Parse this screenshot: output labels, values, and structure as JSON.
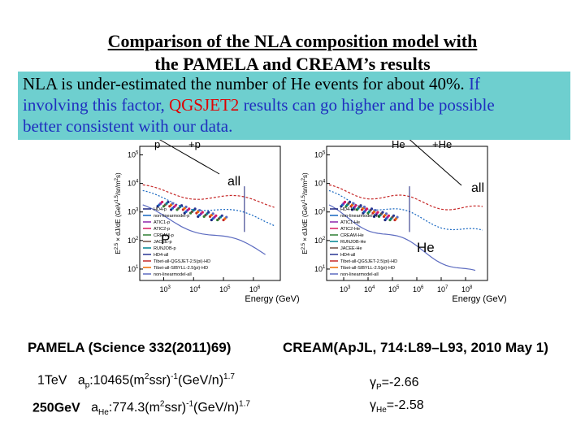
{
  "title": {
    "line1": "Comparison of the  NLA  composition  model  with",
    "line2": "the PAMELA  and CREAM’s  results"
  },
  "note": {
    "line1_black": "NLA  is  under-estimated the number of He events for about 40%.",
    "line1_blue": "If",
    "line2_blue_a": "involving this factor,",
    "line2_red": "QGSJET2",
    "line2_blue_b": "results can go higher and be possible",
    "line3_blue": "better consistent with  our data."
  },
  "plots": [
    {
      "top_labels": [
        "p",
        "+p"
      ],
      "all_label": "all",
      "component_label": "P",
      "component_font": "sans",
      "x_axis_label": "Energy (GeV)",
      "y_axis_label": [
        {
          "t": "E",
          "sup": false
        },
        {
          "t": "2.5",
          "sup": true
        },
        {
          "t": " × dJ/dE (GeV",
          "sup": false
        },
        {
          "t": "1.5",
          "sup": true
        },
        {
          "t": "/sr/m",
          "sup": false
        },
        {
          "t": "2",
          "sup": true
        },
        {
          "t": "s)",
          "sup": false
        }
      ],
      "tick_base": "10",
      "x_tick_exponents": [
        "3",
        "4",
        "5",
        "6"
      ],
      "y_tick_exponents": [
        "1",
        "2",
        "3",
        "4",
        "5"
      ],
      "legend": [
        {
          "name": "HD4-p",
          "color": "#1a237e"
        },
        {
          "name": "non-linearmodel-p",
          "color": "#1565c0"
        },
        {
          "name": "ATIC1-p",
          "color": "#8e24aa"
        },
        {
          "name": "ATIC2-p",
          "color": "#d81b60"
        },
        {
          "name": "CREAM-p",
          "color": "#2e7d32"
        },
        {
          "name": "JACEE-p",
          "color": "#6d4c41"
        },
        {
          "name": "RUNJOB-p",
          "color": "#00838f"
        },
        {
          "name": "HD4-all",
          "color": "#283593"
        },
        {
          "name": "Tibet-all-QGSJET-2.5(pi)-HD",
          "color": "#c62828"
        },
        {
          "name": "Tibet-all-SIBYLL-2.5(pi)-HD",
          "color": "#ef6c00"
        },
        {
          "name": "non-linearmodel-all",
          "color": "#5c6bc0"
        }
      ]
    },
    {
      "top_labels": [
        "He",
        "+He"
      ],
      "all_label": "all",
      "component_label": "He",
      "component_font": "serif",
      "x_axis_label": "Energy (GeV)",
      "y_axis_label": [
        {
          "t": "E",
          "sup": false
        },
        {
          "t": "2.5",
          "sup": true
        },
        {
          "t": " × dJ/dE (GeV",
          "sup": false
        },
        {
          "t": "1.5",
          "sup": true
        },
        {
          "t": "/sr/m",
          "sup": false
        },
        {
          "t": "2",
          "sup": true
        },
        {
          "t": "s)",
          "sup": false
        }
      ],
      "tick_base": "10",
      "x_tick_exponents": [
        "3",
        "4",
        "5",
        "6",
        "7",
        "8"
      ],
      "y_tick_exponents": [
        "1",
        "2",
        "3",
        "4",
        "5"
      ],
      "legend": [
        {
          "name": "HD4-He",
          "color": "#1a237e"
        },
        {
          "name": "non-linearmodel-He",
          "color": "#1565c0"
        },
        {
          "name": "ATIC1-He",
          "color": "#8e24aa"
        },
        {
          "name": "ATIC2-He",
          "color": "#d81b60"
        },
        {
          "name": "CREAM-He",
          "color": "#2e7d32"
        },
        {
          "name": "RUNJOB-He",
          "color": "#00838f"
        },
        {
          "name": "JACEE-He",
          "color": "#6d4c41"
        },
        {
          "name": "HD4-all",
          "color": "#283593"
        },
        {
          "name": "Tibet-all-QGSJET-2.5(pi)-HD",
          "color": "#c62828"
        },
        {
          "name": "Tibet-all-SIBYLL-2.5(pi)-HD",
          "color": "#ef6c00"
        },
        {
          "name": "non-linearmodel-all",
          "color": "#5c6bc0"
        }
      ]
    }
  ],
  "citations": [
    "PAMELA (Science 332(2011)69)",
    "CREAM(ApJL, 714:L89–L93, 2010 May 1)"
  ],
  "params": [
    {
      "energy": "1TeV",
      "a": "a",
      "a_sub": "p",
      "value": ":10465(m",
      "sq": "2",
      "mid": "ssr)",
      "inv": "-1",
      "unit": "(GeV/n)",
      "exp": "1.7",
      "gamma": "γ",
      "gamma_sub": "P",
      "gamma_value": "=-2.66"
    },
    {
      "energy": "250GeV",
      "a": "a",
      "a_sub": "He",
      "value": ":774.3(m",
      "sq": "2",
      "mid": "ssr)",
      "inv": "-1",
      "unit": "(GeV/n)",
      "exp": "1.7",
      "gamma": "γ",
      "gamma_sub": "He",
      "gamma_value": "=-2.58"
    }
  ]
}
